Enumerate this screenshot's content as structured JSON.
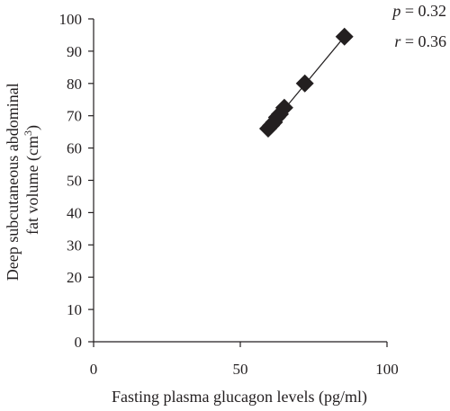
{
  "chart_data": {
    "type": "scatter",
    "xlabel": "Fasting plasma glucagon levels (pg/ml)",
    "ylabel_line1": "Deep subcutaneous abdominal",
    "ylabel_line2": "fat volume (cm",
    "ylabel_line2_sup": "3",
    "ylabel_line2_end": ")",
    "xlim": [
      0,
      100
    ],
    "ylim": [
      0,
      100
    ],
    "xticks": [
      0,
      50,
      100
    ],
    "yticks": [
      0,
      10,
      20,
      30,
      40,
      50,
      60,
      70,
      80,
      90,
      100
    ],
    "points": [
      {
        "x": 59.5,
        "y": 66
      },
      {
        "x": 60.5,
        "y": 67
      },
      {
        "x": 61.5,
        "y": 68
      },
      {
        "x": 62.5,
        "y": 69.5
      },
      {
        "x": 63.5,
        "y": 70.5
      },
      {
        "x": 65,
        "y": 72.5
      },
      {
        "x": 72,
        "y": 80
      },
      {
        "x": 85.5,
        "y": 94.5
      }
    ],
    "trendline": {
      "x1": 59.5,
      "y1": 66,
      "x2": 85.5,
      "y2": 94.5
    },
    "stats": {
      "p_symbol": "p",
      "p_value": " = 0.32",
      "r_symbol": "r",
      "r_value": " = 0.36"
    },
    "marker": "diamond",
    "colors": {
      "marker": "#231f20",
      "axis": "#231f20",
      "line": "#231f20"
    },
    "grid": false
  }
}
